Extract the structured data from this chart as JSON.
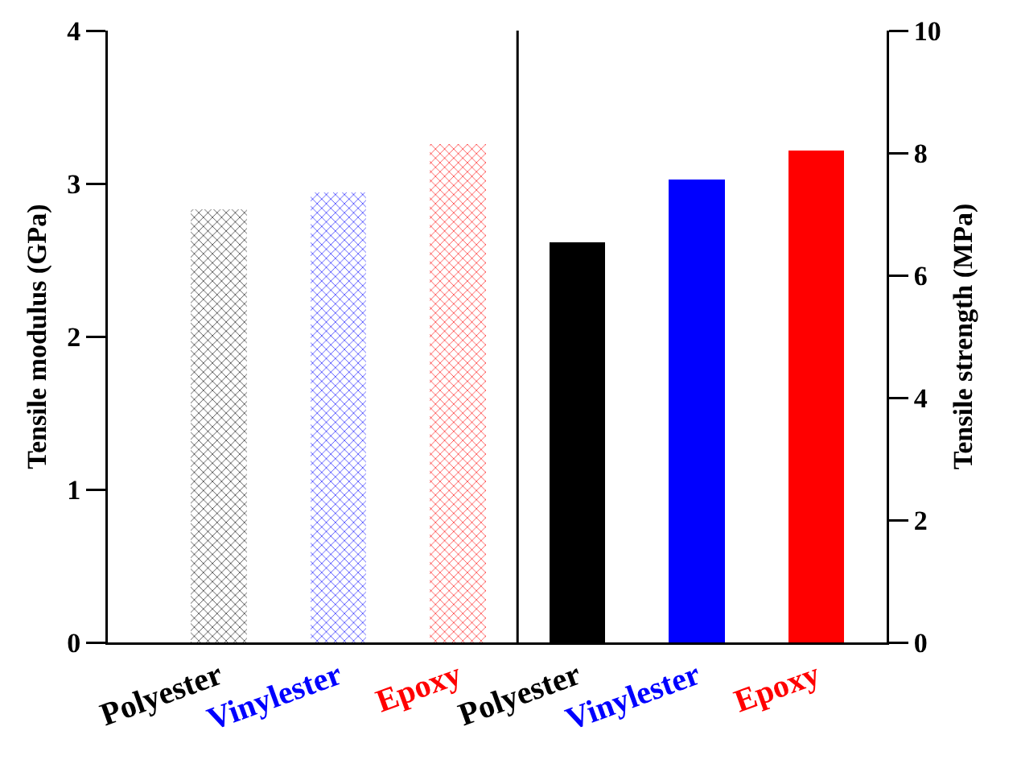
{
  "chart_data": {
    "type": "bar",
    "ylabel": "Tensile modulus (GPa)",
    "y2label": "Tensile strength (MPa)",
    "categories": [
      "Polyester",
      "Vinylester",
      "Epoxy",
      "Polyester",
      "Vinylester",
      "Epoxy"
    ],
    "series": [
      {
        "values": [
          2.83,
          2.94,
          3.26,
          null,
          null,
          null
        ],
        "colors": [
          "#000000",
          "#0000ff",
          "#ff0000",
          null,
          null,
          null
        ]
      },
      {
        "values": [
          null,
          null,
          null,
          6.54,
          7.56,
          8.04
        ],
        "colors": [
          null,
          null,
          null,
          "#000000",
          "#0000ff",
          "#ff0000"
        ],
        "axis": "y2"
      }
    ],
    "ylim": [
      0,
      4
    ],
    "yticks": [
      0,
      1,
      2,
      3,
      4
    ],
    "y2lim": [
      0,
      10
    ],
    "y2ticks": [
      0,
      2,
      4,
      6,
      8,
      10
    ],
    "grid": false
  }
}
